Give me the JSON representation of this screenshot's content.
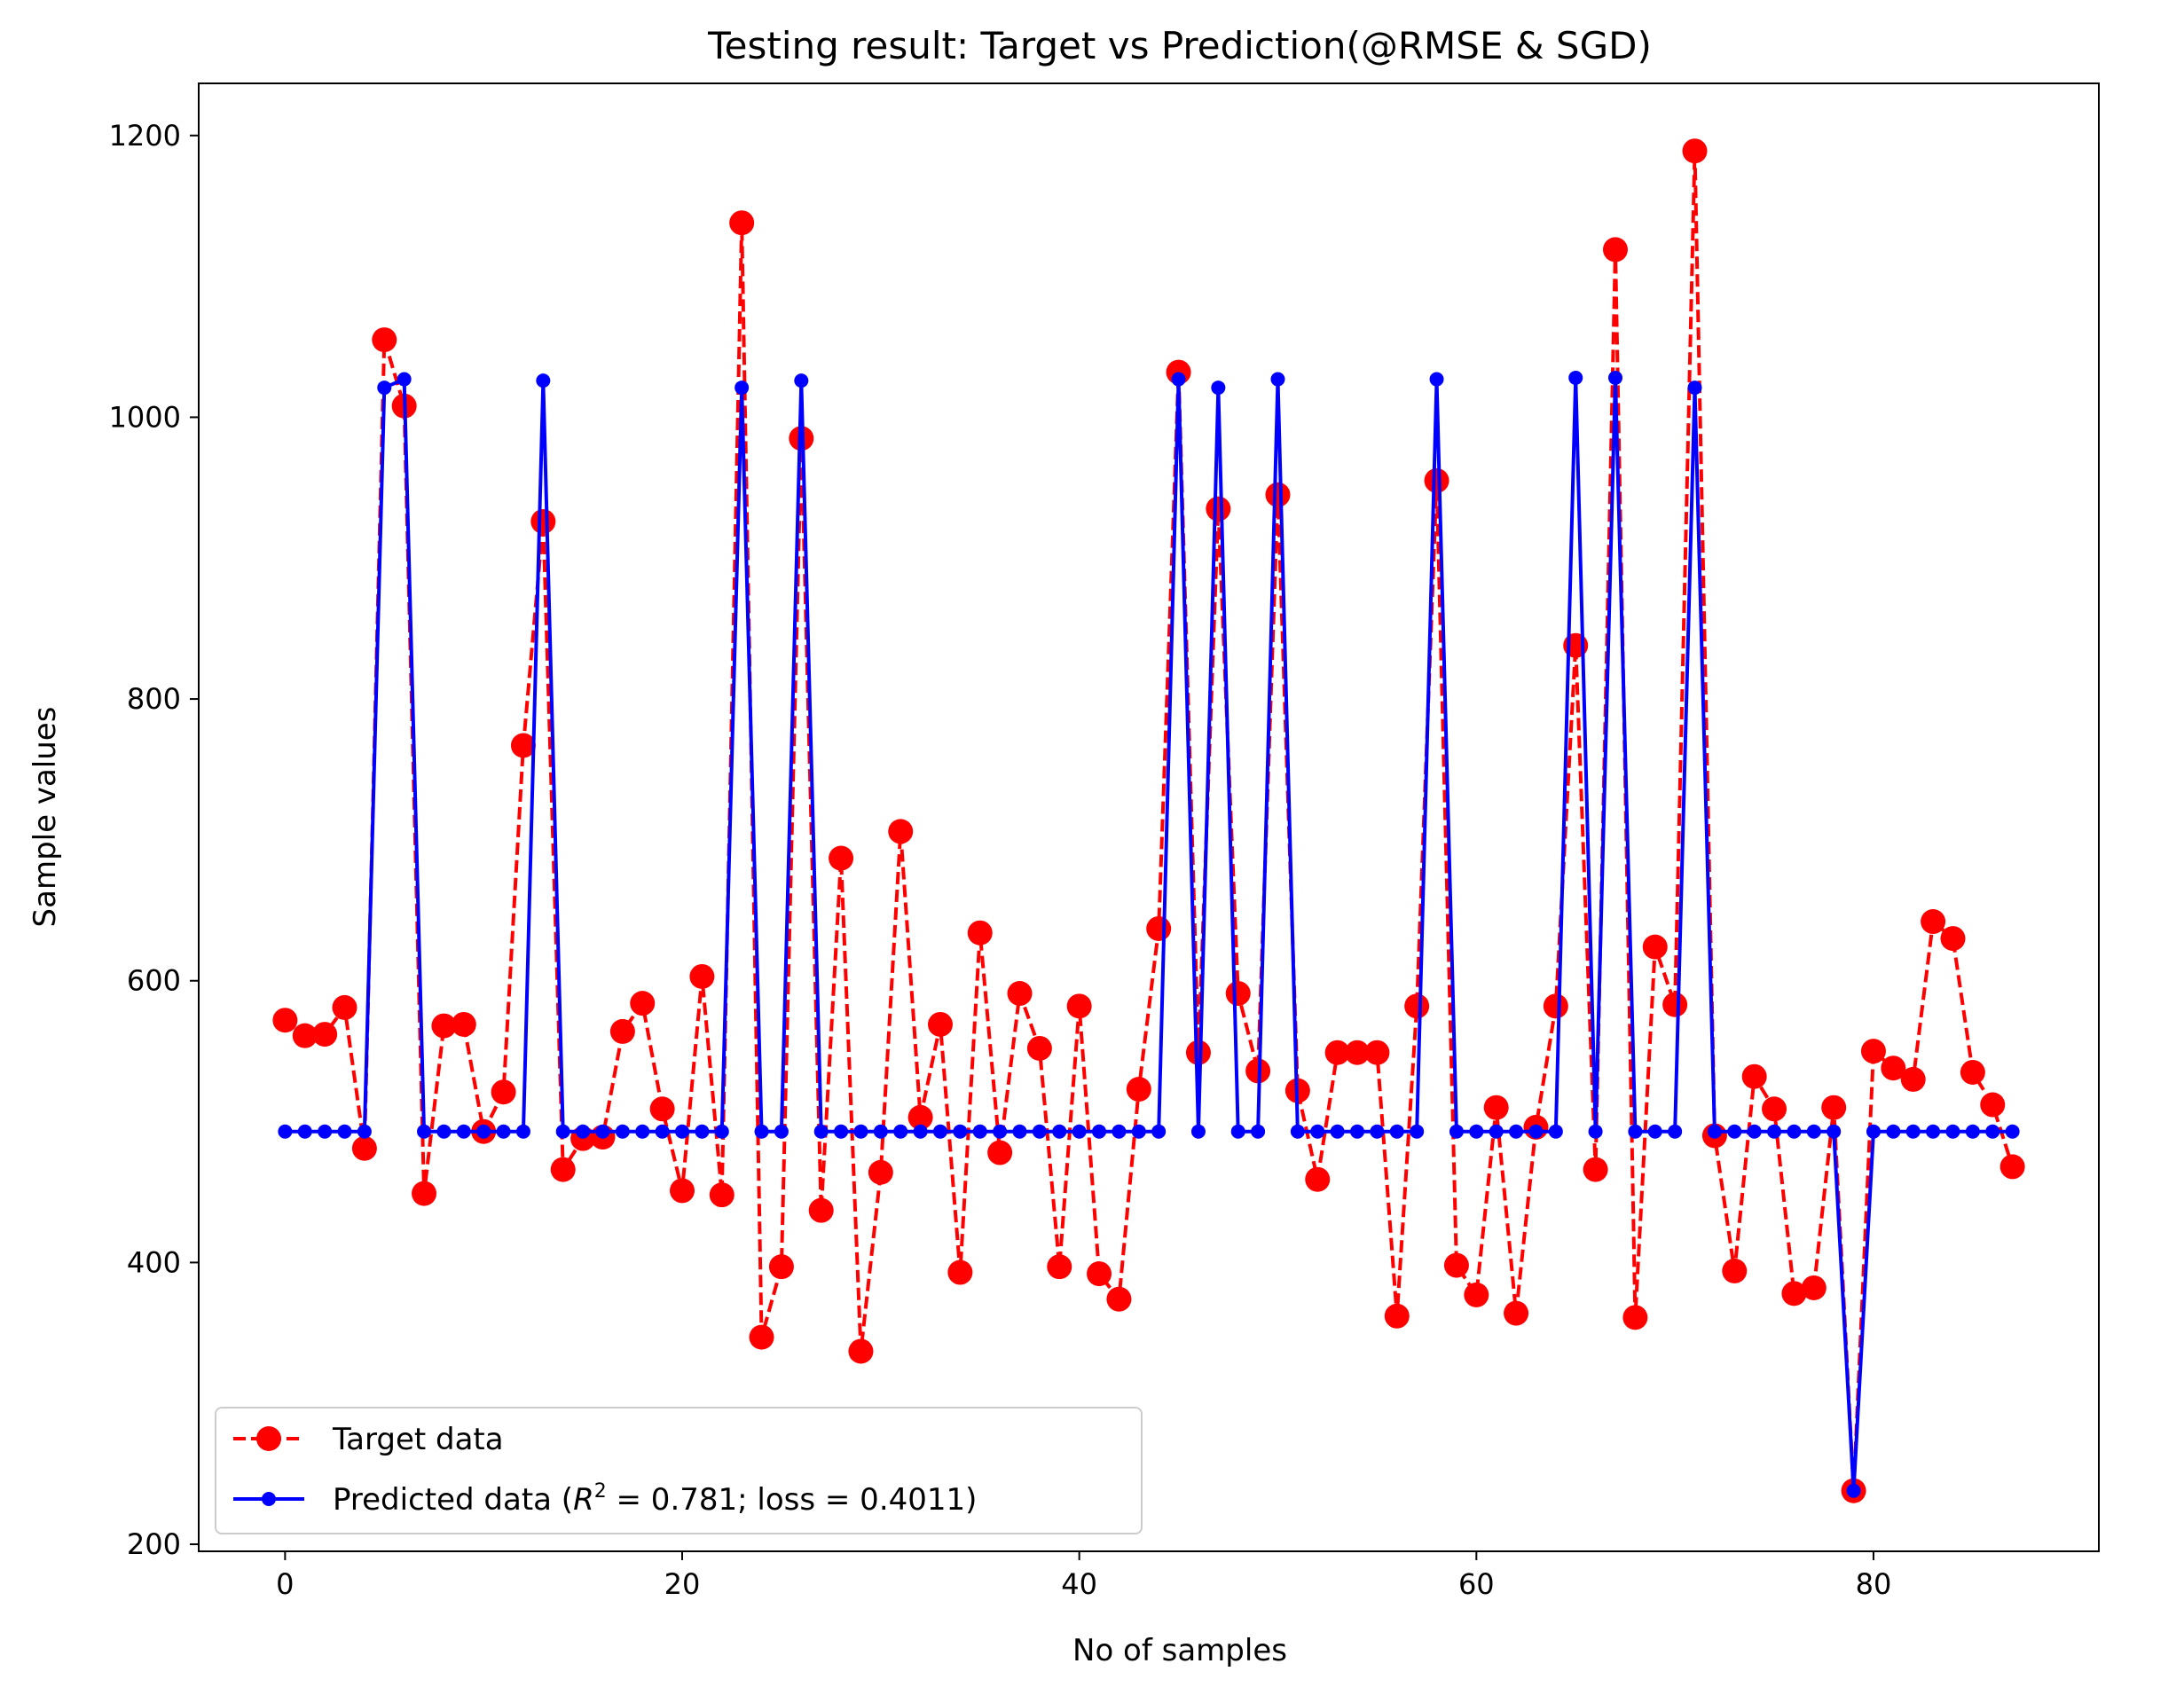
{
  "chart_data": {
    "type": "line",
    "title": "Testing result: Target vs Prediction(@RMSE & SGD)",
    "xlabel": "No of samples",
    "ylabel": "Sample values",
    "xlim": [
      -4.35,
      91.35
    ],
    "ylim": [
      195,
      1237
    ],
    "xticks": [
      0,
      20,
      40,
      60,
      80
    ],
    "yticks": [
      200,
      400,
      600,
      800,
      1000,
      1200
    ],
    "grid": false,
    "legend_position": "lower-left",
    "x": [
      0,
      1,
      2,
      3,
      4,
      5,
      6,
      7,
      8,
      9,
      10,
      11,
      12,
      13,
      14,
      15,
      16,
      17,
      18,
      19,
      20,
      21,
      22,
      23,
      24,
      25,
      26,
      27,
      28,
      29,
      30,
      31,
      32,
      33,
      34,
      35,
      36,
      37,
      38,
      39,
      40,
      41,
      42,
      43,
      44,
      45,
      46,
      47,
      48,
      49,
      50,
      51,
      52,
      53,
      54,
      55,
      56,
      57,
      58,
      59,
      60,
      61,
      62,
      63,
      64,
      65,
      66,
      67,
      68,
      69,
      70,
      71,
      72,
      73,
      74,
      75,
      76,
      77,
      78,
      79,
      80,
      81,
      82,
      83,
      84,
      85,
      86,
      87
    ],
    "series": [
      {
        "name": "Target data",
        "color": "#ff0000",
        "style": "dashed",
        "marker": "large-circle",
        "values": [
          572,
          561,
          562,
          581,
          481,
          1055,
          1008,
          449,
          568,
          569,
          493,
          521,
          767,
          926,
          466,
          488,
          489,
          564,
          584,
          509,
          451,
          603,
          448,
          1138,
          347,
          397,
          985,
          437,
          687,
          337,
          464,
          706,
          503,
          569,
          393,
          634,
          478,
          591,
          552,
          397,
          582,
          392,
          374,
          523,
          637,
          1032,
          549,
          935,
          591,
          536,
          945,
          522,
          459,
          549,
          549,
          549,
          362,
          582,
          955,
          398,
          377,
          510,
          364,
          496,
          582,
          838,
          466,
          1119,
          361,
          624,
          583,
          1189,
          490,
          394,
          532,
          509,
          378,
          382,
          510,
          238,
          550,
          538,
          530,
          642,
          630,
          535,
          512,
          468
        ]
      },
      {
        "name": "Predicted data ($R^2$ = 0.781; loss = 0.4011)",
        "legend_parts": {
          "before": "Predicted data (",
          "var": "R",
          "sup": "2",
          "after": " = 0.781; loss = 0.4011)"
        },
        "color": "#0000ff",
        "style": "solid",
        "marker": "small-circle",
        "values": [
          493,
          493,
          493,
          493,
          493,
          1021,
          1027,
          493,
          493,
          493,
          493,
          493,
          493,
          1026,
          493,
          493,
          493,
          493,
          493,
          493,
          493,
          493,
          493,
          1021,
          493,
          493,
          1026,
          493,
          493,
          493,
          493,
          493,
          493,
          493,
          493,
          493,
          493,
          493,
          493,
          493,
          493,
          493,
          493,
          493,
          493,
          1027,
          493,
          1021,
          493,
          493,
          1027,
          493,
          493,
          493,
          493,
          493,
          493,
          493,
          1027,
          493,
          493,
          493,
          493,
          493,
          493,
          1028,
          493,
          1028,
          493,
          493,
          493,
          1021,
          493,
          493,
          493,
          493,
          493,
          493,
          493,
          238,
          493,
          493,
          493,
          493,
          493,
          493,
          493,
          493
        ]
      }
    ]
  }
}
